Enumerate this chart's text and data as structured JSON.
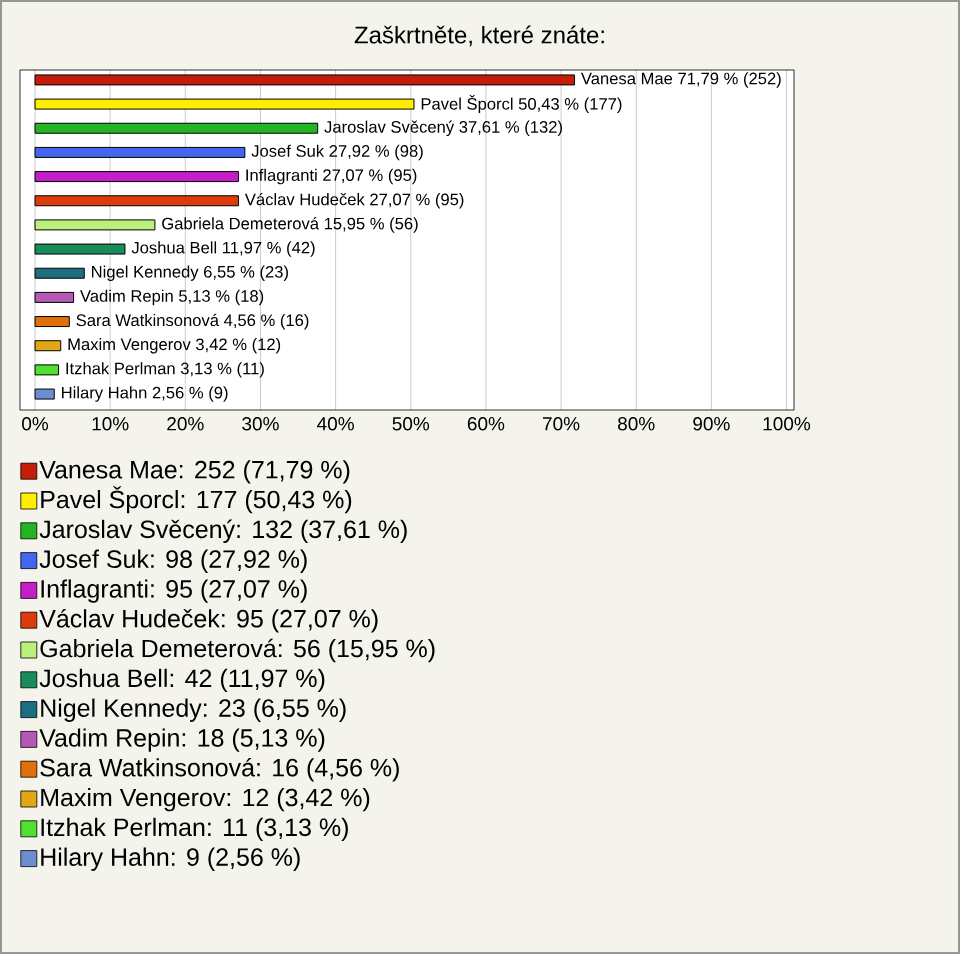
{
  "chart_data": {
    "type": "bar",
    "orientation": "horizontal",
    "title": "Zaškrtněte, které znáte:",
    "categories": [
      null,
      null,
      null,
      null,
      null,
      null,
      null,
      null,
      null,
      null,
      null,
      null,
      null,
      null
    ],
    "xlim": [
      -2,
      101
    ],
    "xticks": [
      {
        "value": 0,
        "label": "0%"
      },
      {
        "value": 10,
        "label": "10%"
      },
      {
        "value": 20,
        "label": "20%"
      },
      {
        "value": 30,
        "label": "30%"
      },
      {
        "value": 40,
        "label": "40%"
      },
      {
        "value": 50,
        "label": "50%"
      },
      {
        "value": 60,
        "label": "60%"
      },
      {
        "value": 70,
        "label": "70%"
      },
      {
        "value": 80,
        "label": "80%"
      },
      {
        "value": 90,
        "label": "90%"
      },
      {
        "value": 100,
        "label": "100%"
      }
    ],
    "grid": "x",
    "legend": "bottom",
    "series": [
      {
        "name": "Vanesa Mae: 252 (71,79 %)",
        "color": "#c41e0a",
        "values": [
          71.79,
          null,
          null,
          null,
          null,
          null,
          null,
          null,
          null,
          null,
          null,
          null,
          null,
          null
        ],
        "value_labels": [
          "Vanesa Mae 71,79 % (252)",
          null,
          null,
          null,
          null,
          null,
          null,
          null,
          null,
          null,
          null,
          null,
          null,
          null
        ]
      },
      {
        "name": "Pavel Šporcl: 177 (50,43 %)",
        "color": "#ffee00",
        "values": [
          null,
          50.43,
          null,
          null,
          null,
          null,
          null,
          null,
          null,
          null,
          null,
          null,
          null,
          null
        ],
        "value_labels": [
          null,
          "Pavel Šporcl 50,43 % (177)",
          null,
          null,
          null,
          null,
          null,
          null,
          null,
          null,
          null,
          null,
          null,
          null
        ]
      },
      {
        "name": "Jaroslav Svěcený: 132 (37,61 %)",
        "color": "#22b422",
        "values": [
          null,
          null,
          37.61,
          null,
          null,
          null,
          null,
          null,
          null,
          null,
          null,
          null,
          null,
          null
        ],
        "value_labels": [
          null,
          null,
          "Jaroslav Svěcený 37,61 % (132)",
          null,
          null,
          null,
          null,
          null,
          null,
          null,
          null,
          null,
          null,
          null
        ]
      },
      {
        "name": "Josef Suk: 98 (27,92 %)",
        "color": "#4466ee",
        "values": [
          null,
          null,
          null,
          27.92,
          null,
          null,
          null,
          null,
          null,
          null,
          null,
          null,
          null,
          null
        ],
        "value_labels": [
          null,
          null,
          null,
          "Josef Suk 27,92 % (98)",
          null,
          null,
          null,
          null,
          null,
          null,
          null,
          null,
          null,
          null
        ]
      },
      {
        "name": "Inflagranti: 95 (27,07 %)",
        "color": "#c41ec8",
        "values": [
          null,
          null,
          null,
          null,
          27.07,
          null,
          null,
          null,
          null,
          null,
          null,
          null,
          null,
          null
        ],
        "value_labels": [
          null,
          null,
          null,
          null,
          "Inflagranti 27,07 % (95)",
          null,
          null,
          null,
          null,
          null,
          null,
          null,
          null,
          null
        ]
      },
      {
        "name": "Václav Hudeček: 95 (27,07 %)",
        "color": "#dd3c0a",
        "values": [
          null,
          null,
          null,
          null,
          null,
          27.07,
          null,
          null,
          null,
          null,
          null,
          null,
          null,
          null
        ],
        "value_labels": [
          null,
          null,
          null,
          null,
          null,
          "Václav Hudeček 27,07 % (95)",
          null,
          null,
          null,
          null,
          null,
          null,
          null,
          null
        ]
      },
      {
        "name": "Gabriela Demeterová: 56 (15,95 %)",
        "color": "#bbf07a",
        "values": [
          null,
          null,
          null,
          null,
          null,
          null,
          15.95,
          null,
          null,
          null,
          null,
          null,
          null,
          null
        ],
        "value_labels": [
          null,
          null,
          null,
          null,
          null,
          null,
          "Gabriela Demeterová 15,95 % (56)",
          null,
          null,
          null,
          null,
          null,
          null,
          null
        ]
      },
      {
        "name": "Joshua Bell: 42 (11,97 %)",
        "color": "#1a8c5a",
        "values": [
          null,
          null,
          null,
          null,
          null,
          null,
          null,
          11.97,
          null,
          null,
          null,
          null,
          null,
          null
        ],
        "value_labels": [
          null,
          null,
          null,
          null,
          null,
          null,
          null,
          "Joshua Bell 11,97 % (42)",
          null,
          null,
          null,
          null,
          null,
          null
        ]
      },
      {
        "name": "Nigel Kennedy: 23 (6,55 %)",
        "color": "#1e6e82",
        "values": [
          null,
          null,
          null,
          null,
          null,
          null,
          null,
          null,
          6.55,
          null,
          null,
          null,
          null,
          null
        ],
        "value_labels": [
          null,
          null,
          null,
          null,
          null,
          null,
          null,
          null,
          "Nigel Kennedy 6,55 % (23)",
          null,
          null,
          null,
          null,
          null
        ]
      },
      {
        "name": "Vadim Repin: 18 (5,13 %)",
        "color": "#b45ab4",
        "values": [
          null,
          null,
          null,
          null,
          null,
          null,
          null,
          null,
          null,
          5.13,
          null,
          null,
          null,
          null
        ],
        "value_labels": [
          null,
          null,
          null,
          null,
          null,
          null,
          null,
          null,
          null,
          "Vadim Repin 5,13 % (18)",
          null,
          null,
          null,
          null
        ]
      },
      {
        "name": "Sara Watkinsonová: 16 (4,56 %)",
        "color": "#e0700a",
        "values": [
          null,
          null,
          null,
          null,
          null,
          null,
          null,
          null,
          null,
          null,
          4.56,
          null,
          null,
          null
        ],
        "value_labels": [
          null,
          null,
          null,
          null,
          null,
          null,
          null,
          null,
          null,
          null,
          "Sara Watkinsonová 4,56 % (16)",
          null,
          null,
          null
        ]
      },
      {
        "name": "Maxim Vengerov: 12 (3,42 %)",
        "color": "#e0a814",
        "values": [
          null,
          null,
          null,
          null,
          null,
          null,
          null,
          null,
          null,
          null,
          null,
          3.42,
          null,
          null
        ],
        "value_labels": [
          null,
          null,
          null,
          null,
          null,
          null,
          null,
          null,
          null,
          null,
          null,
          "Maxim Vengerov 3,42 % (12)",
          null,
          null
        ]
      },
      {
        "name": "Itzhak Perlman: 11 (3,13 %)",
        "color": "#50e030",
        "values": [
          null,
          null,
          null,
          null,
          null,
          null,
          null,
          null,
          null,
          null,
          null,
          null,
          3.13,
          null
        ],
        "value_labels": [
          null,
          null,
          null,
          null,
          null,
          null,
          null,
          null,
          null,
          null,
          null,
          null,
          "Itzhak Perlman 3,13 % (11)",
          null
        ]
      },
      {
        "name": "Hilary Hahn: 9 (2,56 %)",
        "color": "#6e8cd0",
        "values": [
          null,
          null,
          null,
          null,
          null,
          null,
          null,
          null,
          null,
          null,
          null,
          null,
          null,
          2.56
        ],
        "value_labels": [
          null,
          null,
          null,
          null,
          null,
          null,
          null,
          null,
          null,
          null,
          null,
          null,
          null,
          "Hilary Hahn 2,56 % (9)"
        ]
      }
    ]
  }
}
